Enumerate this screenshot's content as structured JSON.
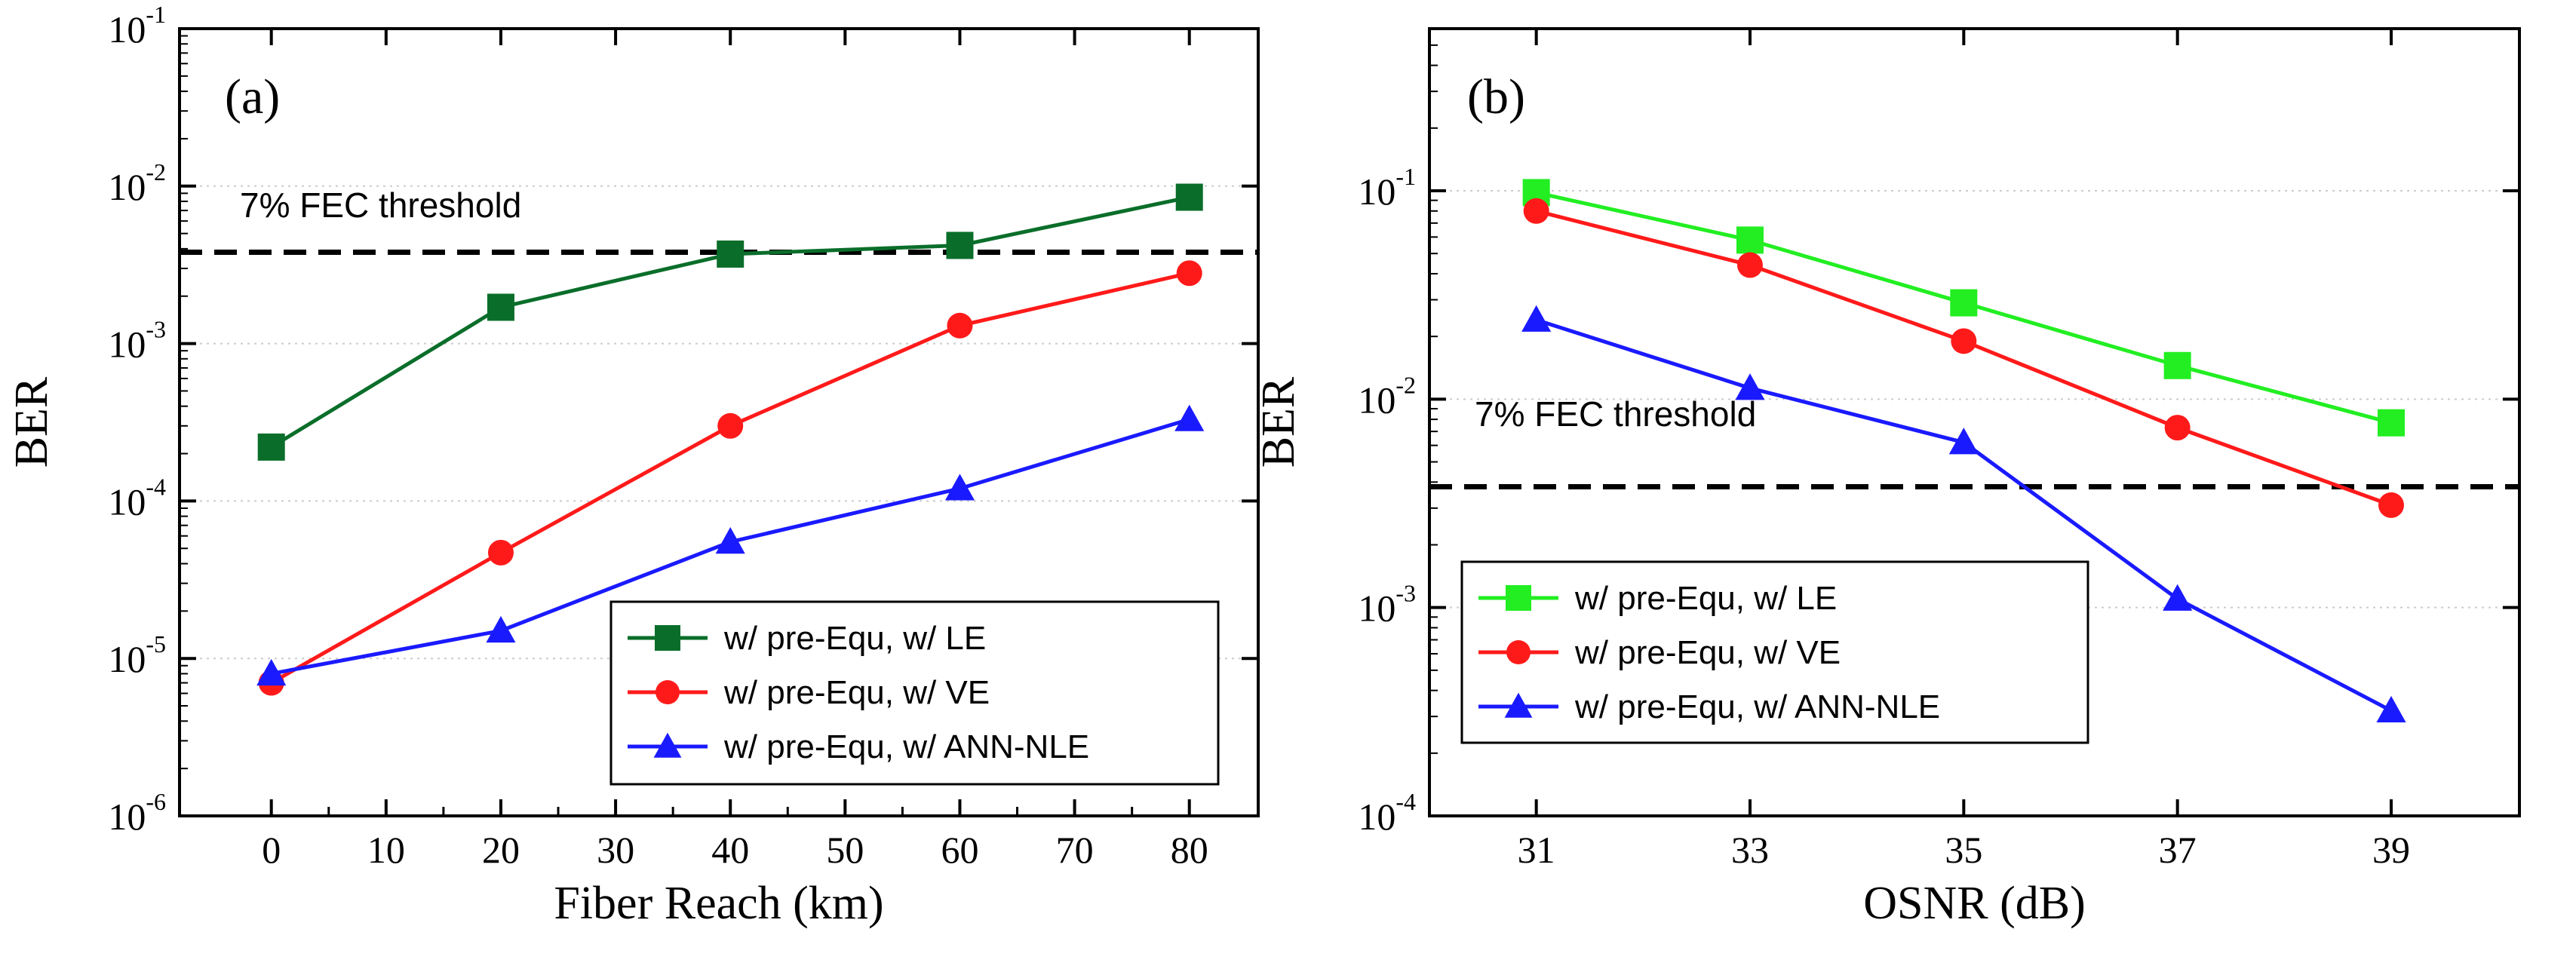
{
  "chart_data": [
    {
      "type": "line",
      "panel_label": "(a)",
      "xlabel": "Fiber Reach (km)",
      "ylabel": "BER",
      "xscale": "linear",
      "yscale": "log",
      "xlim": [
        -8,
        86
      ],
      "ylim": [
        1e-06,
        0.1
      ],
      "xticks": [
        0,
        10,
        20,
        30,
        40,
        50,
        60,
        70,
        80
      ],
      "yticks": [
        {
          "value": 1e-06,
          "base": "10",
          "exp": "-6"
        },
        {
          "value": 1e-05,
          "base": "10",
          "exp": "-5"
        },
        {
          "value": 0.0001,
          "base": "10",
          "exp": "-4"
        },
        {
          "value": 0.001,
          "base": "10",
          "exp": "-3"
        },
        {
          "value": 0.01,
          "base": "10",
          "exp": "-2"
        },
        {
          "value": 0.1,
          "base": "10",
          "exp": "-1"
        }
      ],
      "grid": true,
      "threshold": {
        "value": 0.0038,
        "label": "7% FEC threshold"
      },
      "legend_position": "bottom-right",
      "series": [
        {
          "name": "w/ pre-Equ, w/ LE",
          "color": "#0a6e2a",
          "marker": "square",
          "x": [
            0,
            20,
            40,
            60,
            80
          ],
          "values": [
            0.00022,
            0.0017,
            0.0037,
            0.0042,
            0.0085
          ]
        },
        {
          "name": "w/ pre-Equ, w/ VE",
          "color": "#ff1a1a",
          "marker": "circle",
          "x": [
            0,
            20,
            40,
            60,
            80
          ],
          "values": [
            7e-06,
            4.7e-05,
            0.0003,
            0.0013,
            0.0028
          ]
        },
        {
          "name": "w/ pre-Equ, w/ ANN-NLE",
          "color": "#1a1aff",
          "marker": "triangle",
          "x": [
            0,
            20,
            40,
            60,
            80
          ],
          "values": [
            8e-06,
            1.5e-05,
            5.5e-05,
            0.00012,
            0.00033
          ]
        }
      ]
    },
    {
      "type": "line",
      "panel_label": "(b)",
      "xlabel": "OSNR (dB)",
      "ylabel": "BER",
      "xscale": "linear",
      "yscale": "log",
      "xlim": [
        30,
        40.2
      ],
      "ylim": [
        0.0001,
        0.6
      ],
      "xticks": [
        31,
        33,
        35,
        37,
        39
      ],
      "yticks": [
        {
          "value": 0.0001,
          "base": "10",
          "exp": "-4"
        },
        {
          "value": 0.001,
          "base": "10",
          "exp": "-3"
        },
        {
          "value": 0.01,
          "base": "10",
          "exp": "-2"
        },
        {
          "value": 0.1,
          "base": "10",
          "exp": "-1"
        }
      ],
      "grid": true,
      "threshold": {
        "value": 0.0038,
        "label": "7% FEC threshold"
      },
      "legend_position": "bottom-left",
      "series": [
        {
          "name": "w/ pre-Equ, w/ LE",
          "color": "#22ee22",
          "marker": "square",
          "x": [
            31,
            33,
            35,
            37,
            39
          ],
          "values": [
            0.098,
            0.058,
            0.029,
            0.0145,
            0.0077
          ]
        },
        {
          "name": "w/ pre-Equ, w/ VE",
          "color": "#ff1a1a",
          "marker": "circle",
          "x": [
            31,
            33,
            35,
            37,
            39
          ],
          "values": [
            0.08,
            0.044,
            0.019,
            0.0073,
            0.0031
          ]
        },
        {
          "name": "w/ pre-Equ, w/ ANN-NLE",
          "color": "#1a1aff",
          "marker": "triangle",
          "x": [
            31,
            33,
            35,
            37,
            39
          ],
          "values": [
            0.024,
            0.0113,
            0.0062,
            0.0011,
            0.00032
          ]
        }
      ]
    }
  ]
}
